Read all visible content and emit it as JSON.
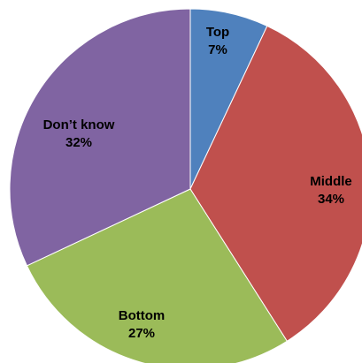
{
  "chart_data": {
    "type": "pie",
    "title": "",
    "start_angle_deg": 0,
    "direction": "clockwise",
    "legend": "none",
    "slices": [
      {
        "label": "Top",
        "value": 7,
        "value_label": "7%",
        "color": "#4F81BD"
      },
      {
        "label": "Middle",
        "value": 34,
        "value_label": "34%",
        "color": "#C0504D"
      },
      {
        "label": "Bottom",
        "value": 27,
        "value_label": "27%",
        "color": "#9BBB59"
      },
      {
        "label": "Don’t know",
        "value": 32,
        "value_label": "32%",
        "color": "#8064A2"
      }
    ]
  }
}
